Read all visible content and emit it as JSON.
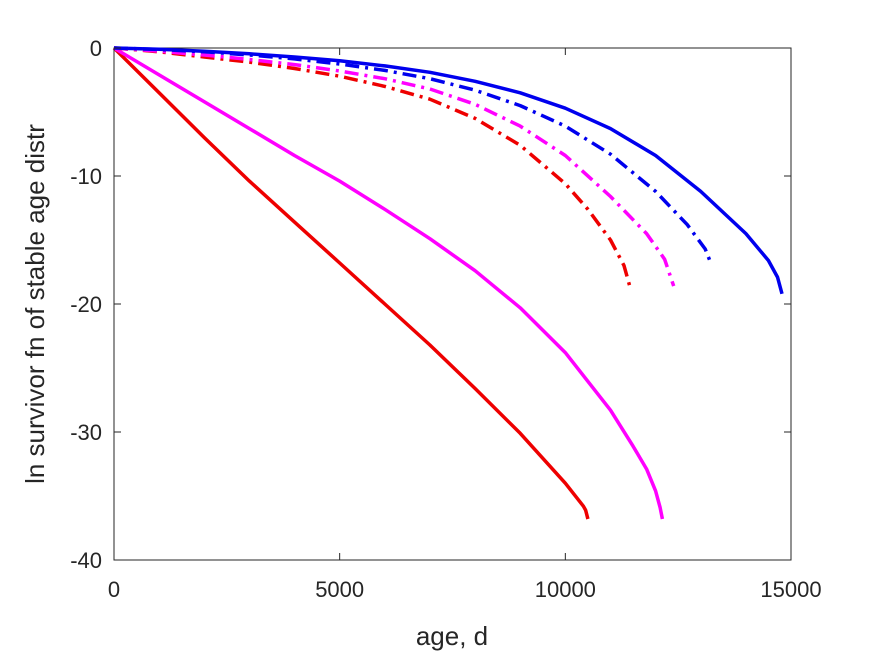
{
  "chart_data": {
    "type": "line",
    "title": "",
    "xlabel": "age, d",
    "ylabel": "ln survivor fn of stable age distr",
    "xlim": [
      0,
      15000
    ],
    "ylim": [
      -40,
      0
    ],
    "x_ticks": [
      "0",
      "5000",
      "10000",
      "15000"
    ],
    "y_ticks": [
      "0",
      "-10",
      "-20",
      "-30",
      "-40"
    ],
    "grid": false,
    "legend": "none",
    "colors": {
      "red": "#ee0000",
      "magenta": "#ff00ff",
      "blue": "#0000ee",
      "axis": "#262626"
    },
    "series": [
      {
        "color": "red",
        "style": "solid",
        "points": [
          [
            0,
            0
          ],
          [
            1000,
            -3.5
          ],
          [
            2000,
            -7
          ],
          [
            3000,
            -10.4
          ],
          [
            4000,
            -13.6
          ],
          [
            5000,
            -16.8
          ],
          [
            6000,
            -20
          ],
          [
            7000,
            -23.2
          ],
          [
            8000,
            -26.6
          ],
          [
            9000,
            -30.1
          ],
          [
            10000,
            -34
          ],
          [
            10400,
            -35.8
          ],
          [
            10450,
            -36.1
          ],
          [
            10500,
            -36.8
          ]
        ]
      },
      {
        "color": "magenta",
        "style": "solid",
        "points": [
          [
            0,
            0
          ],
          [
            1000,
            -2.1
          ],
          [
            2000,
            -4.2
          ],
          [
            3000,
            -6.3
          ],
          [
            4000,
            -8.4
          ],
          [
            5000,
            -10.4
          ],
          [
            6000,
            -12.6
          ],
          [
            7000,
            -14.9
          ],
          [
            8000,
            -17.4
          ],
          [
            9000,
            -20.3
          ],
          [
            10000,
            -23.8
          ],
          [
            11000,
            -28.3
          ],
          [
            11500,
            -31.1
          ],
          [
            11800,
            -32.9
          ],
          [
            12000,
            -34.6
          ],
          [
            12100,
            -35.9
          ],
          [
            12150,
            -36.8
          ]
        ]
      },
      {
        "color": "blue",
        "style": "solid",
        "points": [
          [
            0,
            0
          ],
          [
            1000,
            -0.1
          ],
          [
            2000,
            -0.25
          ],
          [
            3000,
            -0.45
          ],
          [
            4000,
            -0.7
          ],
          [
            5000,
            -1.0
          ],
          [
            6000,
            -1.4
          ],
          [
            7000,
            -1.9
          ],
          [
            8000,
            -2.6
          ],
          [
            9000,
            -3.5
          ],
          [
            10000,
            -4.7
          ],
          [
            11000,
            -6.3
          ],
          [
            12000,
            -8.4
          ],
          [
            13000,
            -11.2
          ],
          [
            14000,
            -14.5
          ],
          [
            14500,
            -16.6
          ],
          [
            14700,
            -17.9
          ],
          [
            14800,
            -19.2
          ]
        ]
      },
      {
        "color": "red",
        "style": "dash-dot",
        "points": [
          [
            0,
            0
          ],
          [
            1000,
            -0.3
          ],
          [
            2000,
            -0.7
          ],
          [
            3000,
            -1.1
          ],
          [
            4000,
            -1.6
          ],
          [
            5000,
            -2.2
          ],
          [
            6000,
            -3.0
          ],
          [
            7000,
            -4.0
          ],
          [
            8000,
            -5.5
          ],
          [
            9000,
            -7.6
          ],
          [
            10000,
            -10.6
          ],
          [
            10500,
            -12.6
          ],
          [
            11000,
            -15.0
          ],
          [
            11300,
            -17.0
          ],
          [
            11450,
            -18.9
          ]
        ]
      },
      {
        "color": "magenta",
        "style": "dash-dot",
        "points": [
          [
            0,
            0
          ],
          [
            1000,
            -0.25
          ],
          [
            2000,
            -0.55
          ],
          [
            3000,
            -0.9
          ],
          [
            4000,
            -1.3
          ],
          [
            5000,
            -1.8
          ],
          [
            6000,
            -2.4
          ],
          [
            7000,
            -3.2
          ],
          [
            8000,
            -4.4
          ],
          [
            9000,
            -6.1
          ],
          [
            10000,
            -8.4
          ],
          [
            11000,
            -11.6
          ],
          [
            11800,
            -14.5
          ],
          [
            12200,
            -16.5
          ],
          [
            12400,
            -18.6
          ]
        ]
      },
      {
        "color": "blue",
        "style": "dash-dot",
        "points": [
          [
            0,
            0
          ],
          [
            1000,
            -0.12
          ],
          [
            2000,
            -0.3
          ],
          [
            3000,
            -0.55
          ],
          [
            4000,
            -0.85
          ],
          [
            5000,
            -1.25
          ],
          [
            6000,
            -1.75
          ],
          [
            7000,
            -2.4
          ],
          [
            8000,
            -3.3
          ],
          [
            9000,
            -4.5
          ],
          [
            10000,
            -6.1
          ],
          [
            11000,
            -8.3
          ],
          [
            12000,
            -11.2
          ],
          [
            12700,
            -13.8
          ],
          [
            13100,
            -15.7
          ],
          [
            13200,
            -16.6
          ]
        ]
      }
    ]
  }
}
